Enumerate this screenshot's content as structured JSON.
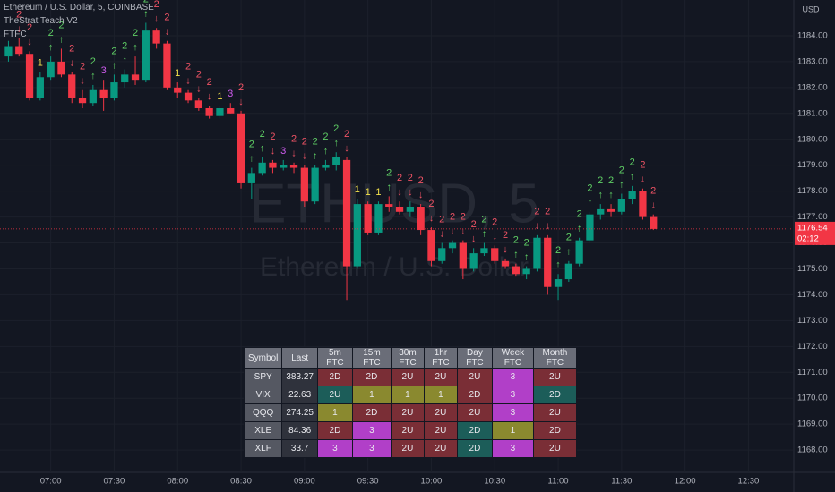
{
  "chart_data": {
    "type": "candlestick",
    "title": "Ethereum / U.S. Dollar, 5, COINBASE",
    "indicators": [
      "TheStrat Teach V2",
      "FTFC"
    ],
    "watermark": "ETHUSD, 5",
    "watermark_subtitle": "Ethereum / U.S. Dollar",
    "y_axis_label": "USD",
    "x": [
      "06:40",
      "06:45",
      "06:50",
      "06:55",
      "07:00",
      "07:05",
      "07:10",
      "07:15",
      "07:20",
      "07:25",
      "07:30",
      "07:35",
      "07:40",
      "07:45",
      "07:50",
      "07:55",
      "08:00",
      "08:05",
      "08:10",
      "08:15",
      "08:20",
      "08:25",
      "08:30",
      "08:35",
      "08:40",
      "08:45",
      "08:50",
      "08:55",
      "09:00",
      "09:05",
      "09:10",
      "09:15",
      "09:20",
      "09:25",
      "09:30",
      "09:35",
      "09:40",
      "09:45",
      "09:50",
      "09:55",
      "10:00",
      "10:05",
      "10:10",
      "10:15",
      "10:20",
      "10:25",
      "10:30",
      "10:35",
      "10:40",
      "10:45",
      "10:50",
      "10:55",
      "11:00",
      "11:05",
      "11:10",
      "11:15",
      "11:20",
      "11:25",
      "11:30",
      "11:35",
      "11:40",
      "11:45"
    ],
    "open": [
      1183.2,
      1183.6,
      1183.3,
      1181.6,
      1182.4,
      1183.0,
      1182.5,
      1181.6,
      1181.4,
      1181.9,
      1181.6,
      1182.2,
      1182.5,
      1182.3,
      1184.2,
      1183.7,
      1182.0,
      1181.8,
      1181.5,
      1181.2,
      1180.9,
      1181.2,
      1181.0,
      1178.3,
      1178.7,
      1179.1,
      1178.9,
      1179.0,
      1178.9,
      1177.6,
      1178.9,
      1179.0,
      1179.2,
      1175.1,
      1177.5,
      1176.4,
      1177.5,
      1177.4,
      1177.2,
      1177.4,
      1176.5,
      1175.3,
      1175.8,
      1176.0,
      1175.0,
      1175.6,
      1175.8,
      1175.3,
      1175.1,
      1174.8,
      1175.0,
      1176.2,
      1174.3,
      1174.6,
      1175.2,
      1176.1,
      1177.1,
      1177.3,
      1177.2,
      1177.7,
      1178.0,
      1177.0
    ],
    "high": [
      1183.8,
      1183.9,
      1183.4,
      1182.6,
      1183.2,
      1183.5,
      1182.6,
      1181.9,
      1182.1,
      1182.3,
      1182.5,
      1182.7,
      1183.2,
      1184.5,
      1184.3,
      1183.8,
      1182.2,
      1181.9,
      1181.6,
      1181.3,
      1181.3,
      1181.4,
      1181.1,
      1178.9,
      1179.3,
      1179.2,
      1179.2,
      1179.1,
      1179.0,
      1179.0,
      1179.2,
      1179.5,
      1179.3,
      1177.7,
      1177.6,
      1177.6,
      1177.8,
      1177.6,
      1177.6,
      1177.5,
      1176.6,
      1176.0,
      1176.1,
      1176.1,
      1175.8,
      1176.0,
      1175.9,
      1175.4,
      1175.2,
      1175.1,
      1176.3,
      1176.3,
      1174.8,
      1175.3,
      1176.2,
      1177.2,
      1177.5,
      1177.5,
      1177.9,
      1178.2,
      1178.1,
      1177.1
    ],
    "low": [
      1183.0,
      1183.2,
      1181.5,
      1181.5,
      1182.3,
      1182.4,
      1181.4,
      1181.2,
      1181.3,
      1181.1,
      1181.5,
      1182.0,
      1182.1,
      1182.2,
      1183.5,
      1181.9,
      1181.6,
      1181.4,
      1181.1,
      1180.8,
      1180.8,
      1181.0,
      1178.1,
      1177.7,
      1178.6,
      1178.7,
      1178.8,
      1178.7,
      1177.4,
      1177.5,
      1178.8,
      1178.8,
      1173.8,
      1175.0,
      1176.3,
      1176.3,
      1177.2,
      1177.1,
      1177.0,
      1176.3,
      1175.1,
      1175.2,
      1175.6,
      1174.6,
      1174.9,
      1175.5,
      1175.2,
      1175.0,
      1174.7,
      1174.6,
      1174.9,
      1174.0,
      1173.8,
      1174.5,
      1175.1,
      1176.0,
      1176.9,
      1177.0,
      1177.1,
      1177.5,
      1176.9,
      1176.5
    ],
    "close": [
      1183.6,
      1183.3,
      1181.6,
      1182.4,
      1183.0,
      1182.5,
      1181.6,
      1181.4,
      1181.9,
      1181.6,
      1182.2,
      1182.5,
      1182.3,
      1184.2,
      1183.7,
      1182.0,
      1181.8,
      1181.5,
      1181.2,
      1180.9,
      1181.2,
      1181.0,
      1178.3,
      1178.7,
      1179.1,
      1178.9,
      1179.0,
      1178.9,
      1177.6,
      1178.9,
      1179.0,
      1179.3,
      1175.1,
      1177.5,
      1176.4,
      1177.5,
      1177.4,
      1177.2,
      1177.4,
      1176.5,
      1175.3,
      1175.8,
      1176.0,
      1175.0,
      1175.6,
      1175.8,
      1175.3,
      1175.1,
      1174.8,
      1175.0,
      1176.2,
      1174.3,
      1174.6,
      1175.2,
      1176.1,
      1177.1,
      1177.3,
      1177.2,
      1177.7,
      1178.0,
      1177.0,
      1176.54
    ],
    "scenario": [
      null,
      "2",
      "2",
      "1",
      "2",
      "2",
      "2",
      "2",
      "2",
      "3",
      "2",
      "2",
      "2",
      "2",
      "2",
      "2",
      "1",
      "2",
      "2",
      "2",
      "1",
      "3",
      "2",
      "2",
      "2",
      "2",
      "3",
      "2",
      "2",
      "2",
      "2",
      "2",
      "2",
      "1",
      "1",
      "1",
      "2",
      "2",
      "2",
      "2",
      "2",
      "2",
      "2",
      "2",
      "2",
      "2",
      "2",
      "2",
      "2",
      "2",
      "2",
      "2",
      "2",
      "2",
      "2",
      "2",
      "2",
      "2",
      "2",
      "2",
      "2",
      "2"
    ],
    "arrow": [
      null,
      "↓",
      "↓",
      null,
      "↑",
      "↑",
      "↓",
      "↓",
      "↑",
      null,
      "↑",
      "↑",
      "↑",
      "↑",
      "↓",
      "↓",
      null,
      "↓",
      "↓",
      "↓",
      null,
      null,
      "↓",
      "↑",
      "↑",
      "↓",
      null,
      "↓",
      "↓",
      "↑",
      "↑",
      "↑",
      "↓",
      null,
      null,
      null,
      "↑",
      "↓",
      "↓",
      "↓",
      "↓",
      "↓",
      "↓",
      "↓",
      "↓",
      "↑",
      "↓",
      "↓",
      "↑",
      "↑",
      "↓",
      "↓",
      "↑",
      "↑",
      "↑",
      "↑",
      "↑",
      "↑",
      "↑",
      "↑",
      "↓",
      "↓"
    ],
    "up_color": "#089981",
    "down_color": "#f23645",
    "label_colors": {
      "up": "#5fcf65",
      "down": "#f05365",
      "1": "#f2e14c",
      "3": "#d05cf0"
    },
    "xlim": [
      "06:36",
      "12:51"
    ],
    "xticks": [
      "07:00",
      "07:30",
      "08:00",
      "08:30",
      "09:00",
      "09:30",
      "10:00",
      "10:30",
      "11:00",
      "11:30",
      "12:00",
      "12:30"
    ],
    "ylim": [
      1167.14,
      1185.38
    ],
    "yticks": [
      {
        "value": 1168,
        "label": "1168.00"
      },
      {
        "value": 1169,
        "label": "1169.00"
      },
      {
        "value": 1170,
        "label": "1170.00"
      },
      {
        "value": 1171,
        "label": "1171.00"
      },
      {
        "value": 1172,
        "label": "1172.00"
      },
      {
        "value": 1173,
        "label": "1173.00"
      },
      {
        "value": 1174,
        "label": "1174.00"
      },
      {
        "value": 1175,
        "label": "1175.00"
      },
      {
        "value": 1176,
        "label": "1176.00"
      },
      {
        "value": 1177,
        "label": "1177.00"
      },
      {
        "value": 1178,
        "label": "1178.00"
      },
      {
        "value": 1179,
        "label": "1179.00"
      },
      {
        "value": 1180,
        "label": "1180.00"
      },
      {
        "value": 1181,
        "label": "1181.00"
      },
      {
        "value": 1182,
        "label": "1182.00"
      },
      {
        "value": 1183,
        "label": "1183.00"
      },
      {
        "value": 1184,
        "label": "1184.00"
      }
    ],
    "grid": true,
    "current_price": 1176.54,
    "countdown": "02:12"
  },
  "table": {
    "header": [
      "Symbol",
      "Last",
      "5m FTC",
      "15m FTC",
      "30m FTC",
      "1hr FTC",
      "Day FTC",
      "Week FTC",
      "Month FTC"
    ],
    "header_color": "#6a6d78",
    "rows": [
      [
        "SPY",
        383.27,
        "2D",
        "2D",
        "2U",
        "2U",
        "2U",
        "3",
        "2U"
      ],
      [
        "VIX",
        22.63,
        "2U",
        "1",
        "1",
        "1",
        "2D",
        "3",
        "2D"
      ],
      [
        "QQQ",
        274.25,
        "1",
        "2D",
        "2U",
        "2U",
        "2U",
        "3",
        "2U"
      ],
      [
        "XLE",
        84.36,
        "2D",
        "3",
        "2U",
        "2U",
        "2D",
        "1",
        "2D"
      ],
      [
        "XLF",
        33.7,
        "3",
        "3",
        "2U",
        "2U",
        "2D",
        "3",
        "2U"
      ]
    ],
    "colors": [
      [
        "#555862",
        "#2f323c",
        "#7a2e36",
        "#7a2e36",
        "#7a2e36",
        "#7a2e36",
        "#7a2e36",
        "#b13fc8",
        "#7a2e36"
      ],
      [
        "#555862",
        "#2f323c",
        "#1c5d59",
        "#8a892f",
        "#8a892f",
        "#8a892f",
        "#7a2e36",
        "#b13fc8",
        "#1c5d59"
      ],
      [
        "#555862",
        "#2f323c",
        "#8a892f",
        "#7a2e36",
        "#7a2e36",
        "#7a2e36",
        "#7a2e36",
        "#b13fc8",
        "#7a2e36"
      ],
      [
        "#555862",
        "#2f323c",
        "#7a2e36",
        "#b13fc8",
        "#7a2e36",
        "#7a2e36",
        "#1c5d59",
        "#8a892f",
        "#7a2e36"
      ],
      [
        "#555862",
        "#2f323c",
        "#b13fc8",
        "#b13fc8",
        "#7a2e36",
        "#7a2e36",
        "#1c5d59",
        "#b13fc8",
        "#7a2e36"
      ]
    ]
  }
}
